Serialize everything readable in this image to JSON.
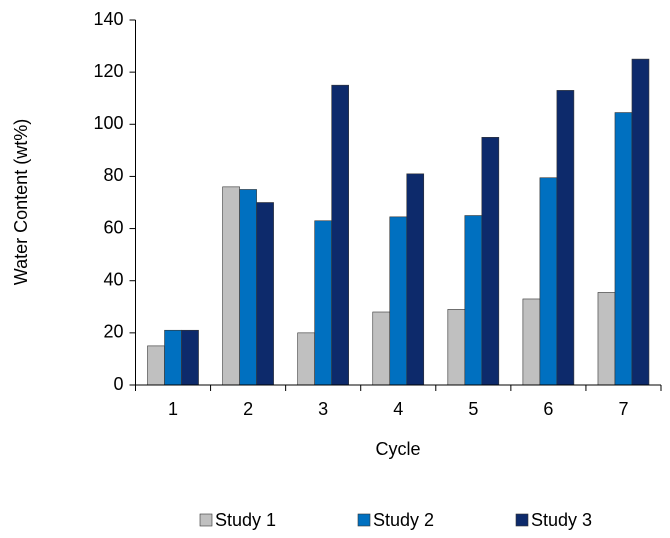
{
  "chart_data": {
    "type": "bar",
    "x_label": "Cycle",
    "y_label": "Water Content (wt%)",
    "categories": [
      "1",
      "2",
      "3",
      "4",
      "5",
      "6",
      "7"
    ],
    "series": [
      {
        "name": "Study 1",
        "color": "#c0c0c0",
        "values": [
          15,
          76,
          20,
          28,
          29,
          33,
          35.5
        ]
      },
      {
        "name": "Study 2",
        "color": "#0070c0",
        "values": [
          21,
          75,
          63,
          64.5,
          65,
          79.5,
          104.5
        ]
      },
      {
        "name": "Study 3",
        "color": "#0d2a6b",
        "values": [
          21,
          70,
          115,
          81,
          95,
          113,
          125
        ]
      }
    ],
    "ylim": [
      0,
      140
    ],
    "yticks": [
      0,
      20,
      40,
      60,
      80,
      100,
      120,
      140
    ],
    "grid": false,
    "legend": "bottom"
  }
}
